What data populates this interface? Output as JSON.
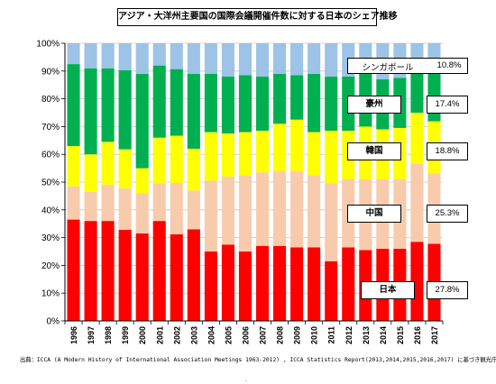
{
  "chart_data": {
    "type": "bar",
    "stacked": true,
    "title": "アジア・大洋州主要国の国際会議開催件数に対する日本のシェア推移",
    "categories": [
      "1996",
      "1997",
      "1998",
      "1999",
      "2000",
      "2001",
      "2002",
      "2003",
      "2004",
      "2005",
      "2006",
      "2007",
      "2008",
      "2009",
      "2010",
      "2011",
      "2012",
      "2013",
      "2014",
      "2015",
      "2016",
      "2017"
    ],
    "ylim": [
      0,
      100
    ],
    "yticks": [
      "0%",
      "10%",
      "20%",
      "30%",
      "40%",
      "50%",
      "60%",
      "70%",
      "80%",
      "90%",
      "100%"
    ],
    "grid": true,
    "series": [
      {
        "name": "日本",
        "color": "#ff0000",
        "values": [
          36.5,
          36.0,
          36.0,
          32.8,
          31.5,
          36.0,
          31.2,
          33.0,
          25.0,
          27.5,
          25.0,
          27.0,
          27.0,
          26.5,
          26.5,
          21.5,
          26.5,
          25.5,
          26.0,
          26.0,
          28.5,
          27.8
        ]
      },
      {
        "name": "中国",
        "color": "#f8cbad",
        "values": [
          12.0,
          10.5,
          13.0,
          15.0,
          14.5,
          13.5,
          18.5,
          14.0,
          25.5,
          24.5,
          27.5,
          26.5,
          27.0,
          27.5,
          26.0,
          28.0,
          24.5,
          25.5,
          25.0,
          25.0,
          28.0,
          25.3
        ]
      },
      {
        "name": "韓国",
        "color": "#ffff00",
        "values": [
          14.5,
          13.5,
          15.5,
          14.0,
          9.0,
          16.5,
          17.0,
          15.0,
          17.5,
          15.5,
          15.5,
          15.0,
          17.0,
          18.5,
          15.5,
          19.0,
          17.5,
          19.0,
          18.0,
          18.5,
          18.5,
          18.8
        ]
      },
      {
        "name": "豪州",
        "color": "#00b050",
        "values": [
          29.5,
          31.0,
          26.5,
          28.5,
          34.0,
          26.0,
          24.0,
          27.0,
          21.0,
          20.5,
          20.5,
          19.5,
          18.0,
          16.0,
          21.0,
          19.5,
          19.5,
          19.5,
          18.0,
          18.0,
          16.0,
          17.4
        ]
      },
      {
        "name": "シンガポール",
        "color": "#9dc3e6",
        "values": [
          7.5,
          9.0,
          9.0,
          9.7,
          11.0,
          8.0,
          9.3,
          11.0,
          11.0,
          12.0,
          11.5,
          12.0,
          11.0,
          11.5,
          11.0,
          12.0,
          12.0,
          10.5,
          13.0,
          12.5,
          9.0,
          10.8
        ]
      }
    ],
    "labels": [
      {
        "name": "シンガポール",
        "pct": "10.8%"
      },
      {
        "name": "豪州",
        "pct": "17.4%"
      },
      {
        "name": "韓国",
        "pct": "18.8%"
      },
      {
        "name": "中国",
        "pct": "25.3%"
      },
      {
        "name": "日本",
        "pct": "27.8%"
      }
    ]
  },
  "source": "出典：ICCA (A Modern History of International Association Meetings 1963-2012) , ICCA Statistics Report(2013,2014,2015,2016,2017) に基づき観光庁作成",
  "footer_mark": "."
}
